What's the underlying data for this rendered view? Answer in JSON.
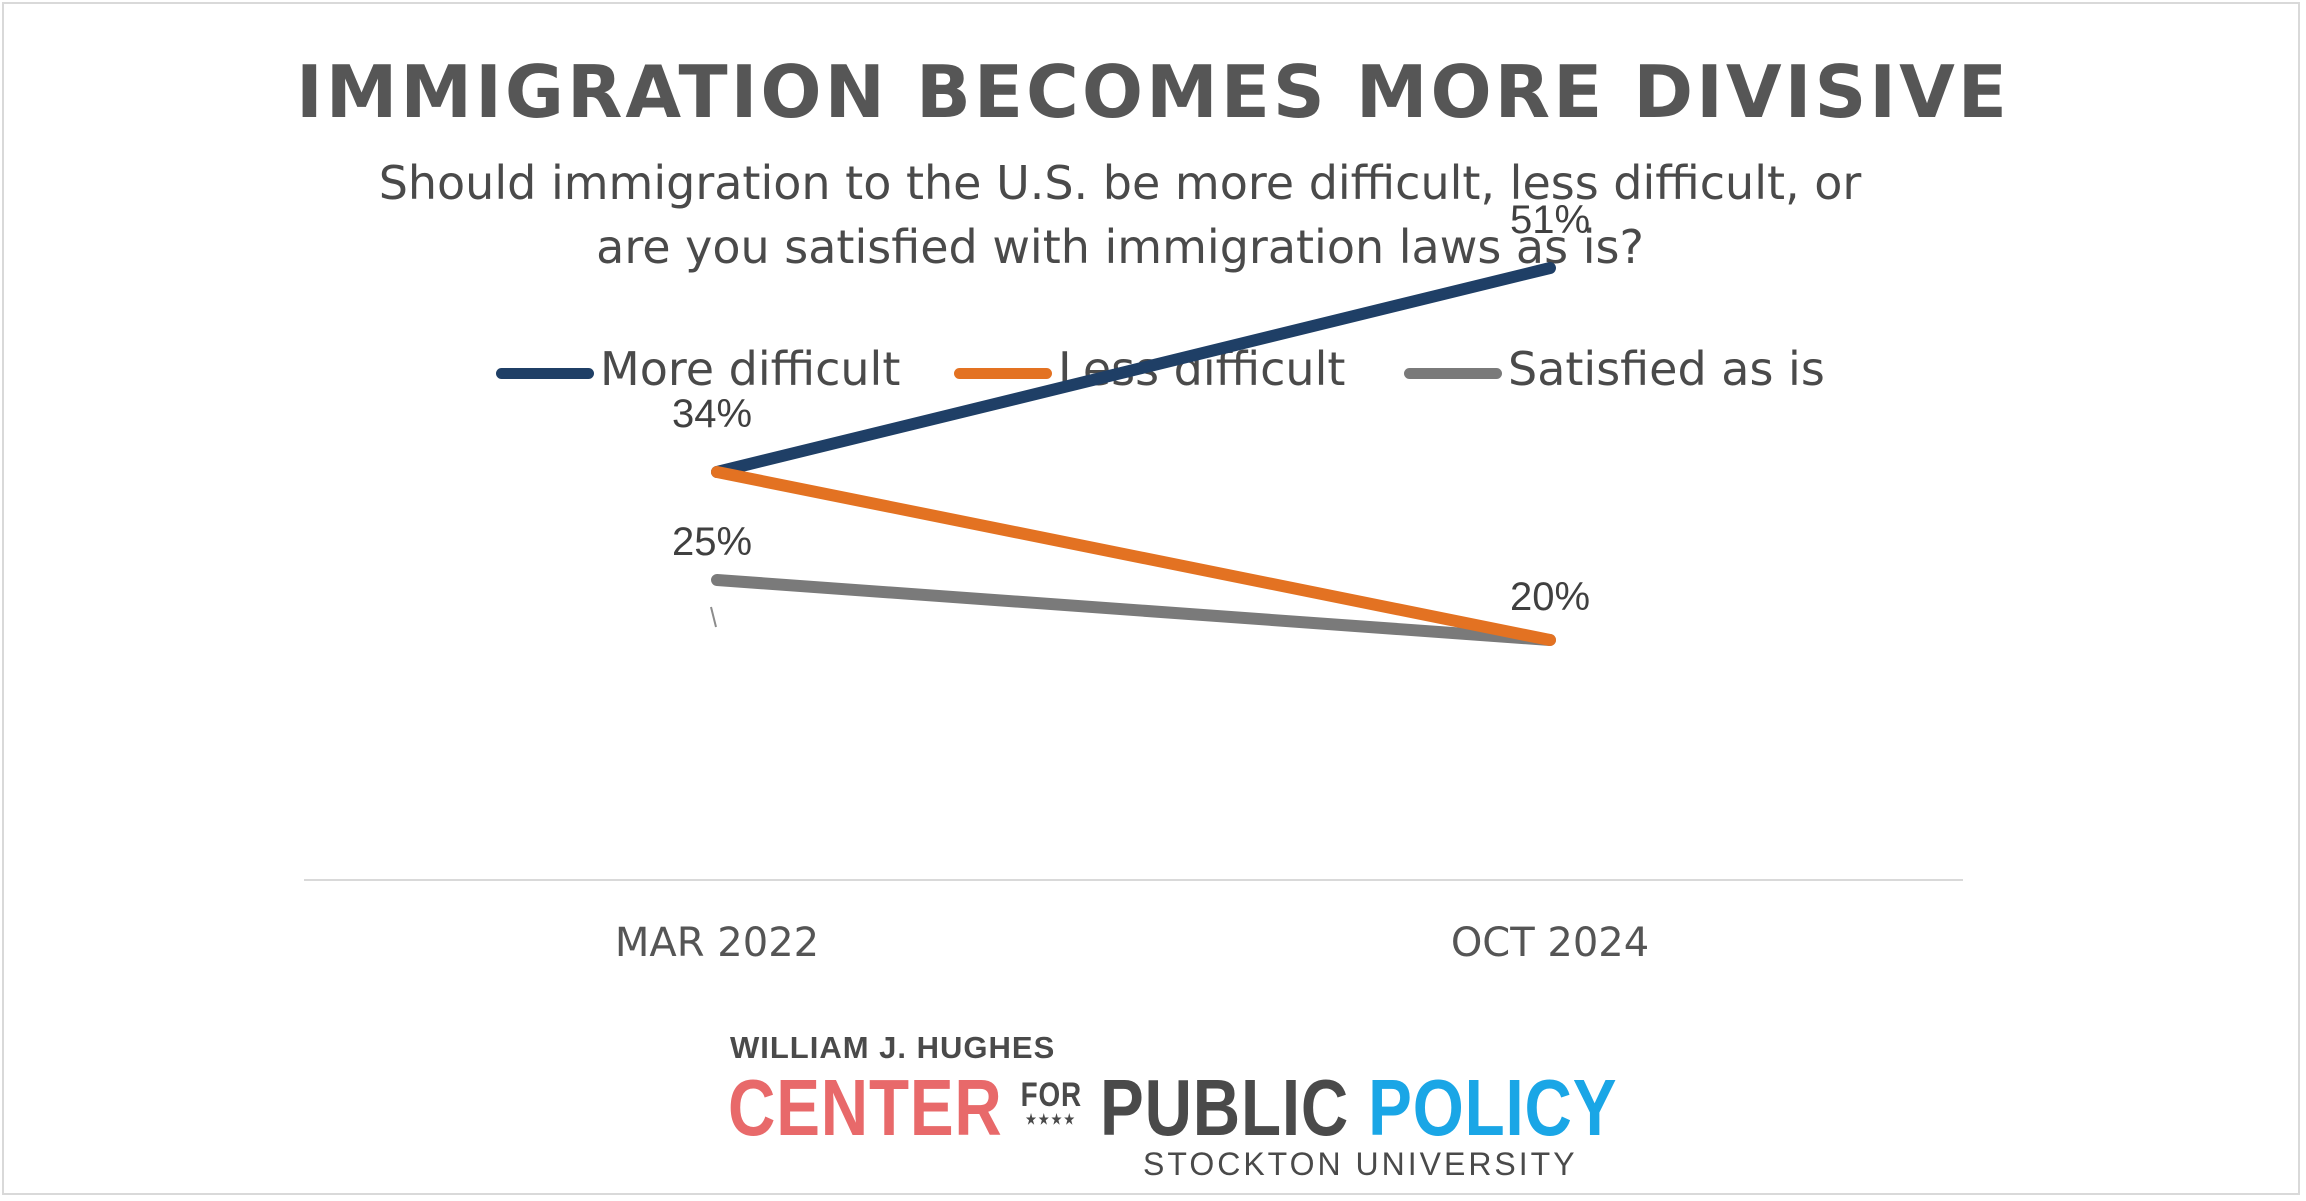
{
  "chart_data": {
    "type": "line",
    "title": "IMMIGRATION BECOMES MORE DIVISIVE",
    "subtitle": [
      "Should immigration to the U.S. be more difficult, less difficult, or",
      "are you satisfied with immigration laws as is?"
    ],
    "categories": [
      "MAR 2022",
      "OCT 2024"
    ],
    "ylim": [
      0,
      60
    ],
    "grid": false,
    "legend_position": "top",
    "series": [
      {
        "name": "More difficult",
        "values": [
          34,
          51
        ],
        "color": "#1f3f66",
        "labels": [
          "34%",
          "51%"
        ]
      },
      {
        "name": "Less difficult",
        "values": [
          34,
          20
        ],
        "color": "#e37222",
        "labels": [
          "",
          "20%"
        ]
      },
      {
        "name": "Satisfied as is",
        "values": [
          25,
          20
        ],
        "color": "#7a7a7a",
        "labels": [
          "25%",
          ""
        ]
      }
    ]
  },
  "logo": {
    "line1": "WILLIAM J. HUGHES",
    "center": "CENTER",
    "for": "FOR",
    "for_stars": "★★★★",
    "public": "PUBLIC",
    "policy": "POLICY",
    "line3": "STOCKTON UNIVERSITY"
  }
}
